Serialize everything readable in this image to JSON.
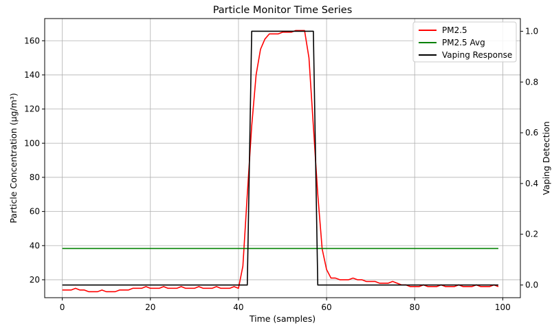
{
  "chart_data": {
    "type": "line",
    "title": "Particle Monitor Time Series",
    "xlabel": "Time (samples)",
    "ylabel": "Particle Concentration (µg/m³)",
    "y2label": "Vaping Detection",
    "xlim": [
      -4,
      104
    ],
    "ylim": [
      9.5,
      173
    ],
    "y2lim": [
      -0.05,
      1.05
    ],
    "xticks": [
      0,
      20,
      40,
      60,
      80,
      100
    ],
    "yticks": [
      20,
      40,
      60,
      80,
      100,
      120,
      140,
      160
    ],
    "y2ticks": [
      0.0,
      0.2,
      0.4,
      0.6,
      0.8,
      1.0
    ],
    "xtick_labels": [
      "0",
      "20",
      "40",
      "60",
      "80",
      "100"
    ],
    "ytick_labels": [
      "20",
      "40",
      "60",
      "80",
      "100",
      "120",
      "140",
      "160"
    ],
    "y2tick_labels": [
      "0.0",
      "0.2",
      "0.4",
      "0.6",
      "0.8",
      "1.0"
    ],
    "grid": true,
    "legend_position": "top-right",
    "series": [
      {
        "name": "PM2.5",
        "axis": "left",
        "color": "#ff0000",
        "x": [
          0,
          1,
          2,
          3,
          4,
          5,
          6,
          7,
          8,
          9,
          10,
          11,
          12,
          13,
          14,
          15,
          16,
          17,
          18,
          19,
          20,
          21,
          22,
          23,
          24,
          25,
          26,
          27,
          28,
          29,
          30,
          31,
          32,
          33,
          34,
          35,
          36,
          37,
          38,
          39,
          40,
          41,
          42,
          43,
          44,
          45,
          46,
          47,
          48,
          49,
          50,
          51,
          52,
          53,
          54,
          55,
          56,
          57,
          58,
          59,
          60,
          61,
          62,
          63,
          64,
          65,
          66,
          67,
          68,
          69,
          70,
          71,
          72,
          73,
          74,
          75,
          76,
          77,
          78,
          79,
          80,
          81,
          82,
          83,
          84,
          85,
          86,
          87,
          88,
          89,
          90,
          91,
          92,
          93,
          94,
          95,
          96,
          97,
          98,
          99
        ],
        "values": [
          14,
          14,
          14,
          15,
          14,
          14,
          13,
          13,
          13,
          14,
          13,
          13,
          13,
          14,
          14,
          14,
          15,
          15,
          15,
          16,
          15,
          15,
          15,
          16,
          15,
          15,
          15,
          16,
          15,
          15,
          15,
          16,
          15,
          15,
          15,
          16,
          15,
          15,
          15,
          16,
          15,
          28,
          70,
          110,
          140,
          155,
          161,
          164,
          164,
          164,
          165,
          165,
          165,
          166,
          166,
          166,
          150,
          110,
          70,
          38,
          26,
          21,
          21,
          20,
          20,
          20,
          21,
          20,
          20,
          19,
          19,
          19,
          18,
          18,
          18,
          19,
          18,
          17,
          17,
          16,
          16,
          16,
          17,
          16,
          16,
          16,
          17,
          16,
          16,
          16,
          17,
          16,
          16,
          16,
          17,
          16,
          16,
          16,
          17,
          16
        ]
      },
      {
        "name": "PM2.5 Avg",
        "axis": "left",
        "color": "#008000",
        "x": [
          0,
          99
        ],
        "values": [
          38.3,
          38.3
        ]
      },
      {
        "name": "Vaping Response",
        "axis": "right",
        "color": "#000000",
        "x": [
          0,
          42,
          43,
          57,
          58,
          99
        ],
        "values": [
          0,
          0,
          1,
          1,
          0,
          0
        ]
      }
    ]
  }
}
